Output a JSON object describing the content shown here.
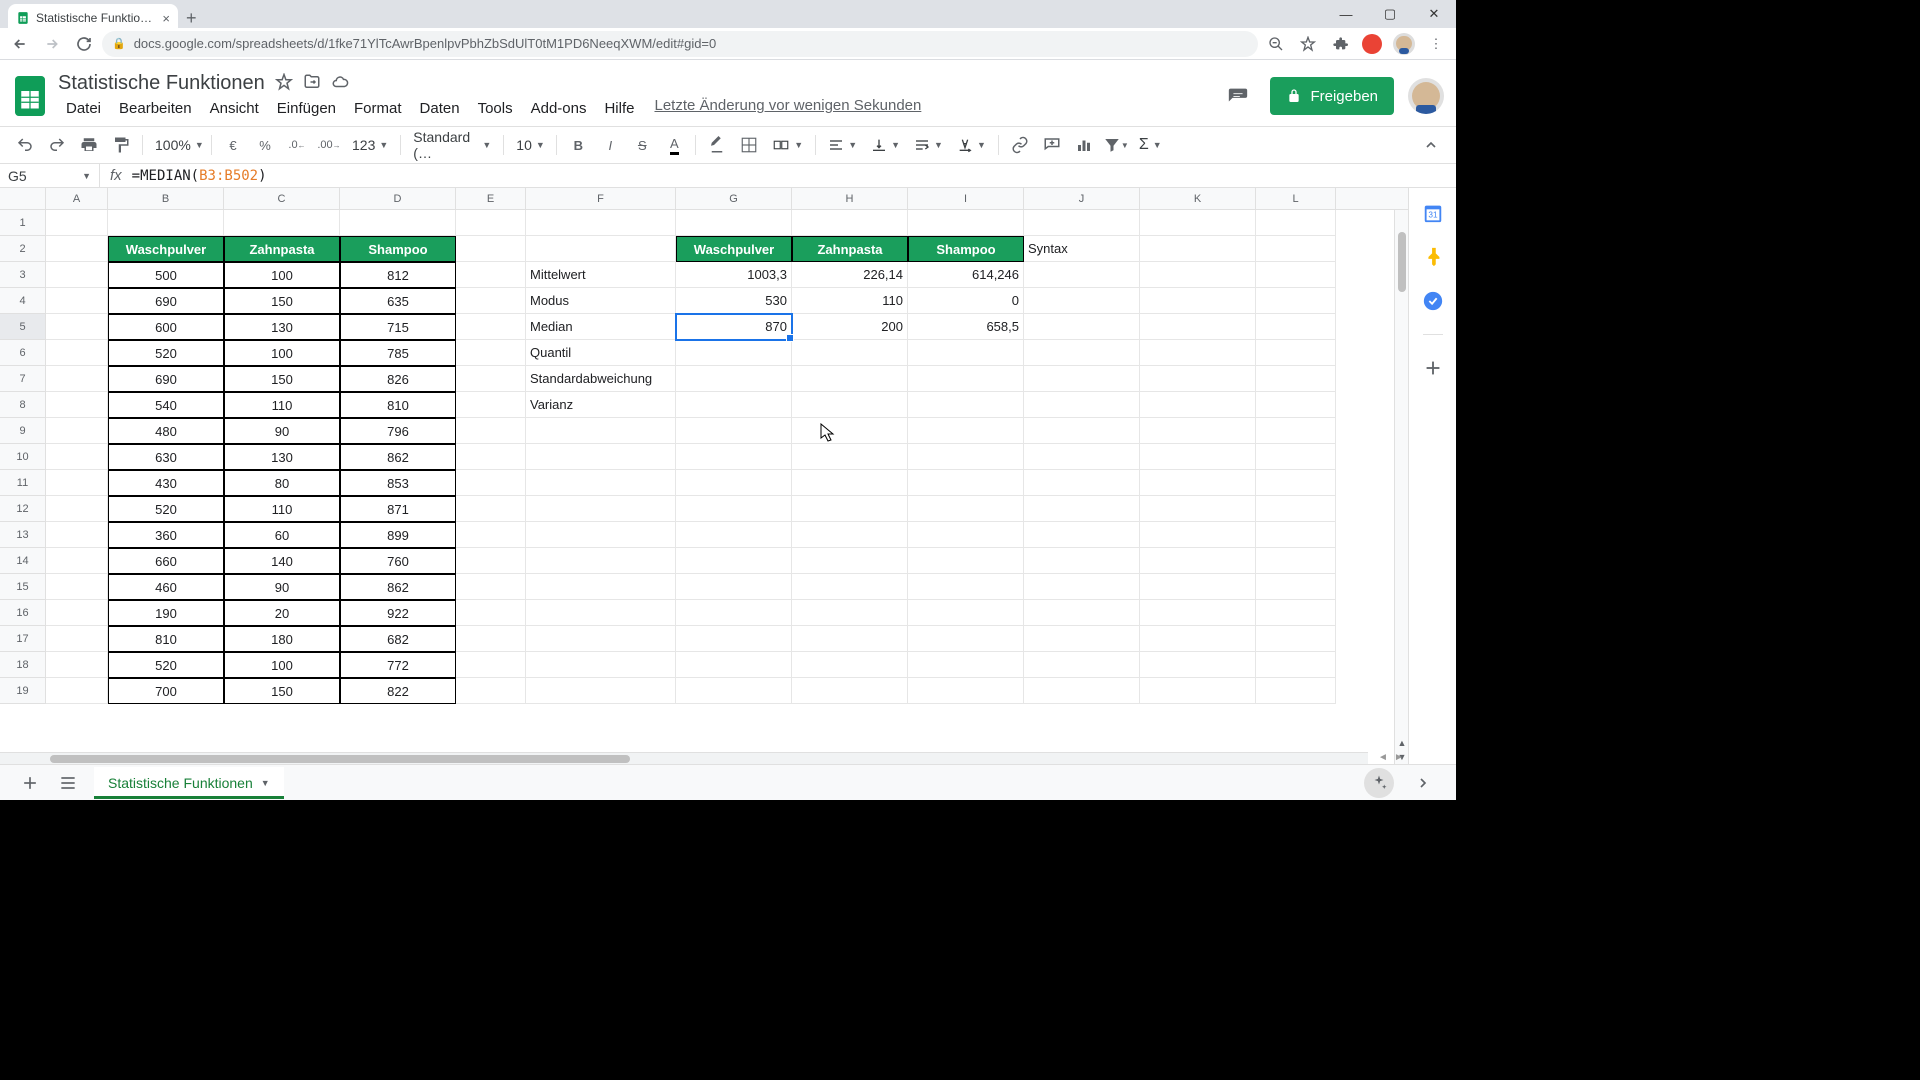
{
  "browser": {
    "tab_title": "Statistische Funktionen - Google",
    "url": "docs.google.com/spreadsheets/d/1fke71YlTcAwrBpenlpvPbhZbSdUlT0tM1PD6NeeqXWM/edit#gid=0"
  },
  "doc": {
    "title": "Statistische Funktionen",
    "last_edit": "Letzte Änderung vor wenigen Sekunden",
    "share_label": "Freigeben"
  },
  "menu": {
    "items": [
      "Datei",
      "Bearbeiten",
      "Ansicht",
      "Einfügen",
      "Format",
      "Daten",
      "Tools",
      "Add-ons",
      "Hilfe"
    ]
  },
  "toolbar": {
    "zoom": "100%",
    "currency": "€",
    "percent": "%",
    "dec_less": ".0",
    "dec_more": ".00",
    "numfmt": "123",
    "font": "Standard (…",
    "fontsize": "10"
  },
  "formula": {
    "cell_ref": "G5",
    "prefix": "=MEDIAN(",
    "ref": "B3:B502",
    "suffix": ")"
  },
  "columns": {
    "letters": [
      "A",
      "B",
      "C",
      "D",
      "E",
      "F",
      "G",
      "H",
      "I",
      "J",
      "K",
      "L"
    ],
    "widths": [
      62,
      116,
      116,
      116,
      70,
      150,
      116,
      116,
      116,
      116,
      116,
      80
    ]
  },
  "data_table": {
    "headers": [
      "Waschpulver",
      "Zahnpasta",
      "Shampoo"
    ],
    "header_bg": "#1a9e5c",
    "header_fg": "#ffffff",
    "border_color": "#000000",
    "rows": [
      [
        "500",
        "100",
        "812"
      ],
      [
        "690",
        "150",
        "635"
      ],
      [
        "600",
        "130",
        "715"
      ],
      [
        "520",
        "100",
        "785"
      ],
      [
        "690",
        "150",
        "826"
      ],
      [
        "540",
        "110",
        "810"
      ],
      [
        "480",
        "90",
        "796"
      ],
      [
        "630",
        "130",
        "862"
      ],
      [
        "430",
        "80",
        "853"
      ],
      [
        "520",
        "110",
        "871"
      ],
      [
        "360",
        "60",
        "899"
      ],
      [
        "660",
        "140",
        "760"
      ],
      [
        "460",
        "90",
        "862"
      ],
      [
        "190",
        "20",
        "922"
      ],
      [
        "810",
        "180",
        "682"
      ],
      [
        "520",
        "100",
        "772"
      ],
      [
        "700",
        "150",
        "822"
      ]
    ]
  },
  "stats_table": {
    "labels": [
      "Mittelwert",
      "Modus",
      "Median",
      "Quantil",
      "Standardabweichung",
      "Varianz"
    ],
    "headers": [
      "Waschpulver",
      "Zahnpasta",
      "Shampoo"
    ],
    "syntax_label": "Syntax",
    "values": [
      [
        "1003,3",
        "226,14",
        "614,246"
      ],
      [
        "530",
        "110",
        "0"
      ],
      [
        "870",
        "200",
        "658,5"
      ],
      [
        "",
        "",
        ""
      ],
      [
        "",
        "",
        ""
      ],
      [
        "",
        "",
        ""
      ]
    ]
  },
  "active_cell": {
    "col": "G",
    "row": 5
  },
  "sheet_tab": "Statistische Funktionen",
  "row_count": 19,
  "colors": {
    "accent_green": "#1a9e5c",
    "selection_blue": "#1a73e8",
    "grid_line": "#e6e6e6",
    "header_bg": "#f8f9fa"
  }
}
